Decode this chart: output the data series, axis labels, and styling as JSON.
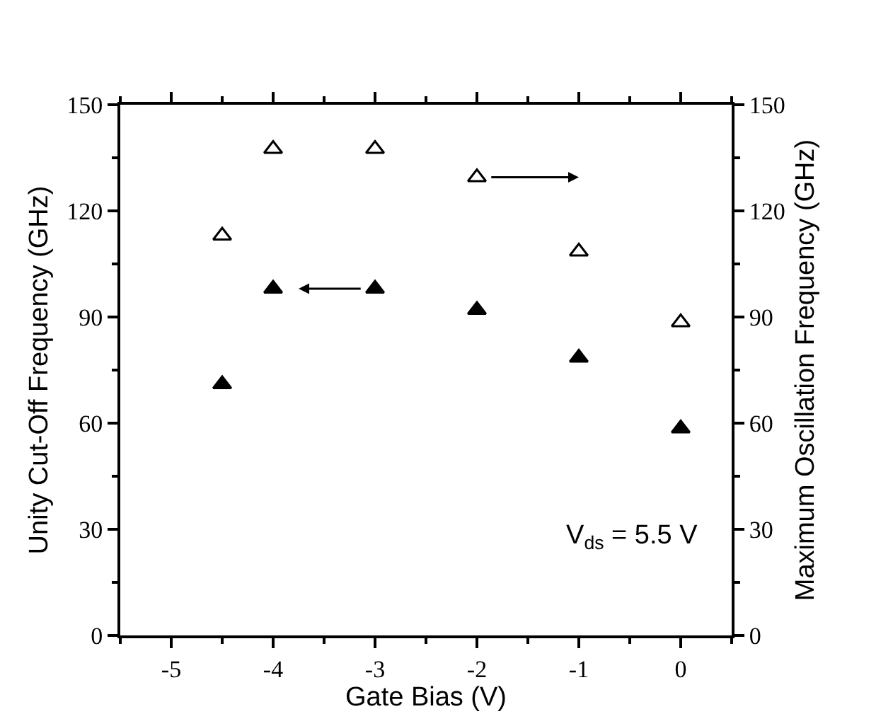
{
  "chart_data": {
    "type": "scatter",
    "xlabel": "Gate Bias (V)",
    "ylabel": "Unity Cut-Off Frequency (GHz)",
    "y2label": "Maximum Oscillation Frequency (GHz)",
    "x": [
      -4.5,
      -4,
      -3,
      -2,
      -1,
      0
    ],
    "series": [
      {
        "color": "#000000",
        "marker": "triangle",
        "values": [
          71,
          98,
          98,
          92,
          78.5,
          58.5
        ]
      },
      {
        "color": "#000000",
        "marker": "triangle-open",
        "axis": "y2",
        "values": [
          113,
          137.5,
          137.5,
          129.5,
          108.5,
          88.5
        ]
      }
    ],
    "xlim": [
      -5.5,
      0.5
    ],
    "xticks": [
      -5,
      -4,
      -3,
      -2,
      -1,
      0
    ],
    "ylim": [
      0,
      150
    ],
    "yticks": [
      0,
      30,
      60,
      90,
      120,
      150
    ],
    "y2lim": [
      0,
      150
    ],
    "y2ticks": [
      0,
      30,
      60,
      90,
      120,
      150
    ],
    "annotations": [
      "V$_{ds}$ = 5.5 V"
    ]
  }
}
